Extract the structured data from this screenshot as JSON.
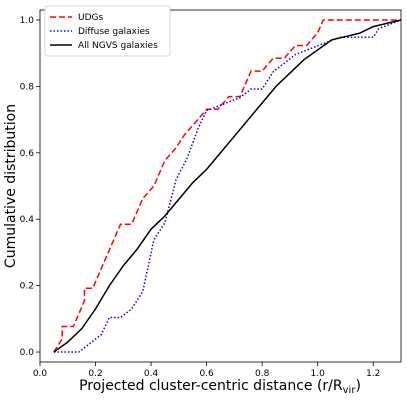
{
  "chart_data": {
    "type": "line",
    "xlabel": "Projected cluster-centric distance (r/R",
    "xlabel_sub": "vir",
    "xlabel_close": ")",
    "ylabel": "Cumulative distribution",
    "xlim": [
      0.0,
      1.3
    ],
    "ylim": [
      -0.03,
      1.03
    ],
    "xticks": [
      "0.0",
      "0.2",
      "0.4",
      "0.6",
      "0.8",
      "1.0",
      "1.2"
    ],
    "yticks": [
      "0.0",
      "0.2",
      "0.4",
      "0.6",
      "0.8",
      "1.0"
    ],
    "grid": false,
    "legend_position": "top-left",
    "series": [
      {
        "name": "UDGs",
        "color": "#ff0000",
        "style": "dashed",
        "points": [
          [
            0.05,
            0.0
          ],
          [
            0.08,
            0.04
          ],
          [
            0.08,
            0.077
          ],
          [
            0.12,
            0.077
          ],
          [
            0.12,
            0.077
          ],
          [
            0.16,
            0.154
          ],
          [
            0.16,
            0.192
          ],
          [
            0.19,
            0.192
          ],
          [
            0.21,
            0.231
          ],
          [
            0.25,
            0.308
          ],
          [
            0.29,
            0.385
          ],
          [
            0.33,
            0.385
          ],
          [
            0.37,
            0.462
          ],
          [
            0.41,
            0.5
          ],
          [
            0.45,
            0.577
          ],
          [
            0.49,
            0.615
          ],
          [
            0.52,
            0.654
          ],
          [
            0.56,
            0.692
          ],
          [
            0.6,
            0.731
          ],
          [
            0.64,
            0.731
          ],
          [
            0.68,
            0.769
          ],
          [
            0.72,
            0.769
          ],
          [
            0.76,
            0.846
          ],
          [
            0.8,
            0.846
          ],
          [
            0.84,
            0.885
          ],
          [
            0.88,
            0.885
          ],
          [
            0.92,
            0.923
          ],
          [
            0.96,
            0.923
          ],
          [
            1.0,
            0.962
          ],
          [
            1.02,
            1.0
          ],
          [
            1.3,
            1.0
          ]
        ]
      },
      {
        "name": "Diffuse galaxies",
        "color": "#0000ff",
        "style": "dotted",
        "points": [
          [
            0.05,
            0.0
          ],
          [
            0.1,
            0.0
          ],
          [
            0.14,
            0.0
          ],
          [
            0.18,
            0.026
          ],
          [
            0.22,
            0.052
          ],
          [
            0.25,
            0.104
          ],
          [
            0.29,
            0.104
          ],
          [
            0.33,
            0.13
          ],
          [
            0.37,
            0.182
          ],
          [
            0.41,
            0.338
          ],
          [
            0.45,
            0.39
          ],
          [
            0.49,
            0.519
          ],
          [
            0.53,
            0.584
          ],
          [
            0.57,
            0.675
          ],
          [
            0.6,
            0.727
          ],
          [
            0.64,
            0.74
          ],
          [
            0.68,
            0.753
          ],
          [
            0.72,
            0.766
          ],
          [
            0.76,
            0.792
          ],
          [
            0.8,
            0.792
          ],
          [
            0.84,
            0.844
          ],
          [
            0.88,
            0.87
          ],
          [
            0.92,
            0.896
          ],
          [
            0.96,
            0.909
          ],
          [
            1.0,
            0.922
          ],
          [
            1.04,
            0.935
          ],
          [
            1.08,
            0.948
          ],
          [
            1.12,
            0.948
          ],
          [
            1.16,
            0.948
          ],
          [
            1.2,
            0.948
          ],
          [
            1.22,
            0.974
          ],
          [
            1.3,
            1.0
          ]
        ]
      },
      {
        "name": "All NGVS galaxies",
        "color": "#000000",
        "style": "solid",
        "points": [
          [
            0.05,
            0.0
          ],
          [
            0.1,
            0.03
          ],
          [
            0.15,
            0.07
          ],
          [
            0.2,
            0.13
          ],
          [
            0.25,
            0.2
          ],
          [
            0.3,
            0.26
          ],
          [
            0.35,
            0.31
          ],
          [
            0.4,
            0.37
          ],
          [
            0.45,
            0.41
          ],
          [
            0.5,
            0.46
          ],
          [
            0.55,
            0.51
          ],
          [
            0.6,
            0.55
          ],
          [
            0.65,
            0.6
          ],
          [
            0.7,
            0.65
          ],
          [
            0.75,
            0.7
          ],
          [
            0.8,
            0.75
          ],
          [
            0.85,
            0.8
          ],
          [
            0.9,
            0.84
          ],
          [
            0.95,
            0.88
          ],
          [
            1.0,
            0.91
          ],
          [
            1.05,
            0.94
          ],
          [
            1.1,
            0.95
          ],
          [
            1.15,
            0.96
          ],
          [
            1.2,
            0.98
          ],
          [
            1.25,
            0.99
          ],
          [
            1.3,
            1.0
          ]
        ]
      }
    ]
  }
}
